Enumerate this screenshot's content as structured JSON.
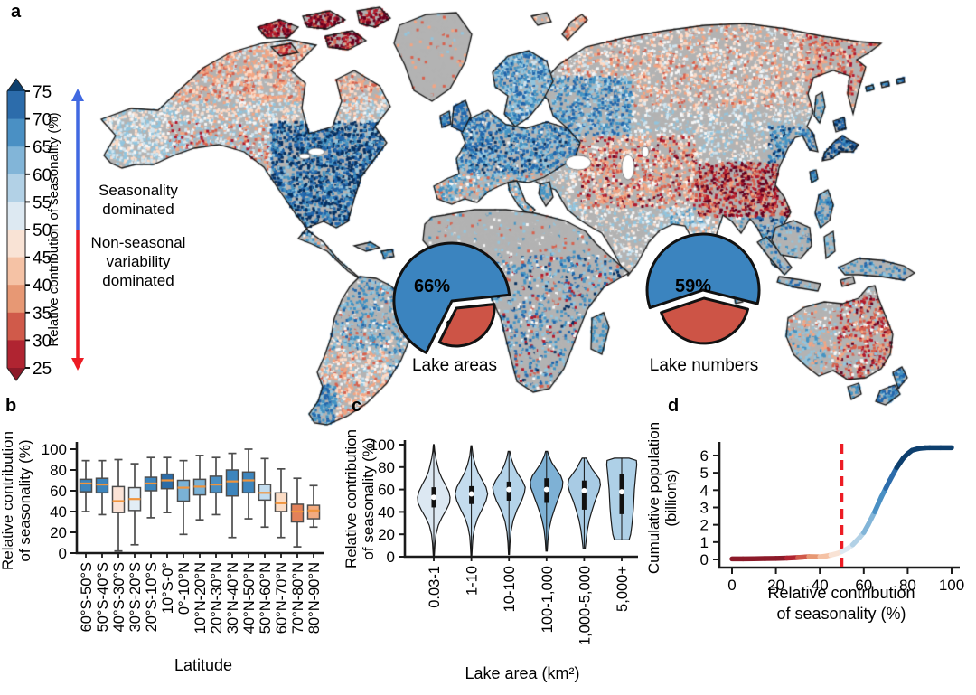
{
  "figure_labels": {
    "a": "a",
    "b": "b",
    "c": "c",
    "d": "d"
  },
  "colorbar": {
    "title": "Relative contribution of seasonality (%)",
    "ticks": [
      75,
      70,
      65,
      60,
      55,
      50,
      45,
      40,
      35,
      30,
      25
    ],
    "top_end_color": "#0d3f6e",
    "bottom_end_color": "#8c1a29",
    "band_colors_top_to_bottom": [
      "#2c6cab",
      "#4a90c4",
      "#82b5d8",
      "#b2d1e6",
      "#dde9f2",
      "#f9e3d5",
      "#f5c2a5",
      "#e79874",
      "#d05a4a",
      "#b02431"
    ],
    "arrow_up_color": "#4169e1",
    "arrow_down_color": "#ec1c24",
    "annotation_seasonal": [
      "Seasonality",
      "dominated"
    ],
    "annotation_nonseasonal": [
      "Non-seasonal",
      "variability",
      "dominated"
    ]
  },
  "chart_data": [
    {
      "id": "map",
      "type": "map",
      "region": "world",
      "value_label": "Relative contribution of seasonality (%)",
      "value_range_pct": [
        25,
        75
      ],
      "high_values_color_family": "blue (seasonality dominated)",
      "low_values_color_family": "red (non-seasonal variability dominated)",
      "no_data_color": "#b3b3b3"
    },
    {
      "id": "pies",
      "type": "pie",
      "charts": [
        {
          "title": "Lake areas",
          "slices": [
            {
              "label": "66%",
              "value": 66,
              "color": "#3b84bf"
            },
            {
              "label": "34%",
              "value": 34,
              "color": "#cd5446"
            }
          ]
        },
        {
          "title": "Lake numbers",
          "slices": [
            {
              "label": "59%",
              "value": 59,
              "color": "#3b84bf"
            },
            {
              "label": "41%",
              "value": 41,
              "color": "#cd5446"
            }
          ]
        }
      ]
    },
    {
      "id": "b",
      "type": "box",
      "xlabel": "Latitude",
      "ylabel_lines": [
        "Relative contribution",
        "of seasonality (%)"
      ],
      "ylim": [
        0,
        100
      ],
      "yticks": [
        0,
        20,
        40,
        60,
        80,
        100
      ],
      "median_color": "#f0943c",
      "categories": [
        "60°S-50°S",
        "50°S-40°S",
        "40°S-30°S",
        "30°S-20°S",
        "20°S-10°S",
        "10°S-0°",
        "0°-10°N",
        "10°N-20°N",
        "20°N-30°N",
        "30°N-40°N",
        "40°N-50°N",
        "50°N-60°N",
        "60°N-70°N",
        "70°N-80°N",
        "80°N-90°N"
      ],
      "boxes": [
        {
          "lo": 40,
          "q1": 59,
          "med": 67,
          "q3": 71,
          "hi": 89,
          "color": "#3d85bd"
        },
        {
          "lo": 37,
          "q1": 58,
          "med": 66,
          "q3": 72,
          "hi": 89,
          "color": "#3d85bd"
        },
        {
          "lo": 2,
          "q1": 39,
          "med": 50,
          "q3": 64,
          "hi": 90,
          "color": "#fbe3d6"
        },
        {
          "lo": 8,
          "q1": 41,
          "med": 52,
          "q3": 63,
          "hi": 86,
          "color": "#e2edf5"
        },
        {
          "lo": 34,
          "q1": 60,
          "med": 67,
          "q3": 73,
          "hi": 92,
          "color": "#3d85bd"
        },
        {
          "lo": 39,
          "q1": 62,
          "med": 70,
          "q3": 76,
          "hi": 92,
          "color": "#2b6ca8"
        },
        {
          "lo": 18,
          "q1": 50,
          "med": 63,
          "q3": 70,
          "hi": 89,
          "color": "#7ab2d6"
        },
        {
          "lo": 32,
          "q1": 56,
          "med": 64,
          "q3": 71,
          "hi": 94,
          "color": "#7ab2d6"
        },
        {
          "lo": 37,
          "q1": 58,
          "med": 66,
          "q3": 74,
          "hi": 92,
          "color": "#4a8fc3"
        },
        {
          "lo": 15,
          "q1": 55,
          "med": 69,
          "q3": 80,
          "hi": 96,
          "color": "#3d85bd"
        },
        {
          "lo": 33,
          "q1": 58,
          "med": 70,
          "q3": 78,
          "hi": 100,
          "color": "#3d85bd"
        },
        {
          "lo": 25,
          "q1": 51,
          "med": 58,
          "q3": 66,
          "hi": 91,
          "color": "#c3dcee"
        },
        {
          "lo": 15,
          "q1": 40,
          "med": 48,
          "q3": 58,
          "hi": 81,
          "color": "#fbdcc5"
        },
        {
          "lo": 6,
          "q1": 30,
          "med": 40,
          "q3": 47,
          "hi": 72,
          "color": "#e2815a"
        },
        {
          "lo": 25,
          "q1": 33,
          "med": 41,
          "q3": 46,
          "hi": 65,
          "color": "#f2ab80"
        }
      ]
    },
    {
      "id": "c",
      "type": "violin",
      "xlabel": "Lake area (km²)",
      "ylabel_lines": [
        "Relative contribution",
        "of seasonality (%)"
      ],
      "ylim": [
        0,
        100
      ],
      "yticks": [
        0,
        20,
        40,
        60,
        80,
        100
      ],
      "categories": [
        "0.03-1",
        "1-10",
        "10-100",
        "100-1,000",
        "1,000-5,000",
        "5,000+"
      ],
      "violins": [
        {
          "min": 0,
          "q1": 44,
          "med": 53,
          "q3": 62,
          "max": 100,
          "color": "#dce8f2",
          "profile": [
            [
              0,
              0.03
            ],
            [
              5,
              0.05
            ],
            [
              12,
              0.08
            ],
            [
              20,
              0.14
            ],
            [
              28,
              0.28
            ],
            [
              35,
              0.5
            ],
            [
              42,
              0.78
            ],
            [
              48,
              0.97
            ],
            [
              53,
              1.0
            ],
            [
              58,
              0.92
            ],
            [
              64,
              0.72
            ],
            [
              70,
              0.5
            ],
            [
              76,
              0.33
            ],
            [
              82,
              0.22
            ],
            [
              88,
              0.13
            ],
            [
              94,
              0.06
            ],
            [
              100,
              0.02
            ]
          ]
        },
        {
          "min": 1,
          "q1": 47,
          "med": 56,
          "q3": 63,
          "max": 99,
          "color": "#c4dcee",
          "profile": [
            [
              1,
              0.03
            ],
            [
              10,
              0.06
            ],
            [
              18,
              0.1
            ],
            [
              26,
              0.2
            ],
            [
              34,
              0.38
            ],
            [
              42,
              0.65
            ],
            [
              50,
              0.9
            ],
            [
              56,
              1.0
            ],
            [
              62,
              0.9
            ],
            [
              68,
              0.68
            ],
            [
              75,
              0.42
            ],
            [
              82,
              0.24
            ],
            [
              90,
              0.1
            ],
            [
              99,
              0.03
            ]
          ]
        },
        {
          "min": 2,
          "q1": 50,
          "med": 60,
          "q3": 67,
          "max": 94,
          "color": "#b4d3e9",
          "profile": [
            [
              2,
              0.03
            ],
            [
              12,
              0.06
            ],
            [
              22,
              0.12
            ],
            [
              32,
              0.25
            ],
            [
              42,
              0.5
            ],
            [
              50,
              0.78
            ],
            [
              57,
              0.95
            ],
            [
              62,
              1.0
            ],
            [
              68,
              0.82
            ],
            [
              75,
              0.5
            ],
            [
              82,
              0.28
            ],
            [
              88,
              0.14
            ],
            [
              94,
              0.05
            ]
          ]
        },
        {
          "min": 5,
          "q1": 48,
          "med": 60,
          "q3": 70,
          "max": 94,
          "color": "#7eb1d5",
          "profile": [
            [
              5,
              0.04
            ],
            [
              14,
              0.08
            ],
            [
              24,
              0.15
            ],
            [
              34,
              0.3
            ],
            [
              44,
              0.52
            ],
            [
              54,
              0.78
            ],
            [
              62,
              0.97
            ],
            [
              67,
              1.0
            ],
            [
              72,
              0.88
            ],
            [
              78,
              0.6
            ],
            [
              84,
              0.32
            ],
            [
              90,
              0.14
            ],
            [
              94,
              0.06
            ]
          ]
        },
        {
          "min": 7,
          "q1": 42,
          "med": 59,
          "q3": 68,
          "max": 88,
          "color": "#a8cbe4",
          "profile": [
            [
              7,
              0.06
            ],
            [
              15,
              0.12
            ],
            [
              24,
              0.2
            ],
            [
              33,
              0.32
            ],
            [
              42,
              0.5
            ],
            [
              50,
              0.68
            ],
            [
              58,
              0.9
            ],
            [
              64,
              1.0
            ],
            [
              69,
              0.95
            ],
            [
              74,
              0.7
            ],
            [
              79,
              0.45
            ],
            [
              84,
              0.28
            ],
            [
              88,
              0.12
            ]
          ]
        },
        {
          "min": 15,
          "q1": 38,
          "med": 58,
          "q3": 74,
          "max": 88,
          "color": "#aed0e7",
          "profile": [
            [
              15,
              0.45
            ],
            [
              20,
              0.55
            ],
            [
              28,
              0.62
            ],
            [
              36,
              0.68
            ],
            [
              44,
              0.72
            ],
            [
              52,
              0.75
            ],
            [
              60,
              0.78
            ],
            [
              68,
              0.83
            ],
            [
              76,
              0.88
            ],
            [
              82,
              0.92
            ],
            [
              86,
              0.9
            ],
            [
              88,
              0.45
            ]
          ]
        }
      ]
    },
    {
      "id": "d",
      "type": "line",
      "xlabel_lines": [
        "Relative contribution",
        "of seasonality (%)"
      ],
      "ylabel_lines": [
        "Cumulative population",
        "(billions)"
      ],
      "xlim": [
        0,
        100
      ],
      "xticks": [
        0,
        20,
        40,
        60,
        80,
        100
      ],
      "ylim": [
        0,
        6.5
      ],
      "yticks": [
        0,
        1,
        2,
        3,
        4,
        5,
        6
      ],
      "color_encoding": "line colored by x value using the map colorbar",
      "vline": {
        "x": 50,
        "color": "#ed1c24",
        "style": "dashed"
      },
      "points": [
        [
          0,
          0.03
        ],
        [
          5,
          0.03
        ],
        [
          10,
          0.04
        ],
        [
          15,
          0.05
        ],
        [
          20,
          0.06
        ],
        [
          25,
          0.08
        ],
        [
          30,
          0.11
        ],
        [
          35,
          0.16
        ],
        [
          40,
          0.15
        ],
        [
          43,
          0.2
        ],
        [
          45,
          0.25
        ],
        [
          48,
          0.35
        ],
        [
          50,
          0.45
        ],
        [
          53,
          0.65
        ],
        [
          55,
          0.85
        ],
        [
          58,
          1.25
        ],
        [
          60,
          1.55
        ],
        [
          62,
          2.0
        ],
        [
          65,
          2.75
        ],
        [
          68,
          3.6
        ],
        [
          70,
          4.1
        ],
        [
          72,
          4.6
        ],
        [
          75,
          5.3
        ],
        [
          78,
          5.85
        ],
        [
          80,
          6.1
        ],
        [
          82,
          6.3
        ],
        [
          85,
          6.4
        ],
        [
          88,
          6.44
        ],
        [
          90,
          6.45
        ],
        [
          95,
          6.45
        ],
        [
          100,
          6.45
        ]
      ]
    }
  ]
}
